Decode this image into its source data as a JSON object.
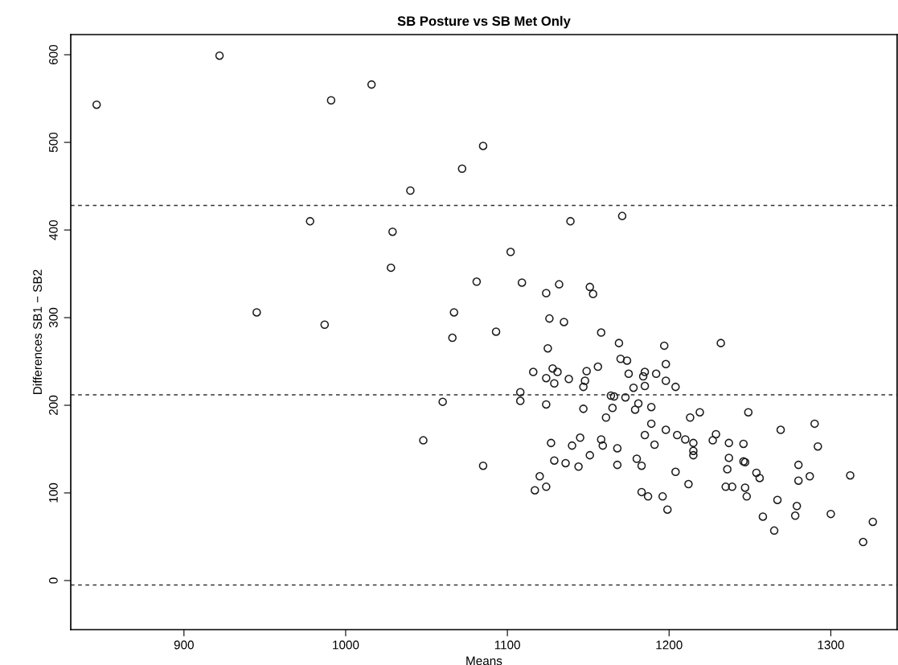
{
  "chart_data": {
    "type": "scatter",
    "title": "SB Posture vs SB Met Only",
    "xlabel": "Means",
    "ylabel": "Differences SB1 − SB2",
    "xlim": [
      830,
      1341
    ],
    "ylim": [
      -56,
      623
    ],
    "xticks": [
      900,
      1000,
      1100,
      1200,
      1300
    ],
    "yticks": [
      0,
      100,
      200,
      300,
      400,
      500,
      600
    ],
    "marker": "circle",
    "grid": false,
    "legend": false,
    "ref_lines": [
      {
        "axis": "y",
        "value": 428,
        "line_style": "dashed",
        "color": "#333333"
      },
      {
        "axis": "y",
        "value": 212,
        "line_style": "dashed",
        "color": "#333333"
      },
      {
        "axis": "y",
        "value": -5,
        "line_style": "dashed",
        "color": "#333333"
      }
    ],
    "series": [
      {
        "color": "#1a1a1a",
        "x": [
          846,
          922,
          991,
          1016,
          1085,
          1072,
          1040,
          978,
          1029,
          1028,
          945,
          987,
          1067,
          1066,
          1093,
          1081,
          1102,
          1109,
          1124,
          1132,
          1151,
          1153,
          1126,
          1135,
          1158,
          1125,
          1169,
          1197,
          1170,
          1174,
          1198,
          1116,
          1128,
          1131,
          1124,
          1129,
          1138,
          1149,
          1156,
          1148,
          1147,
          1175,
          1185,
          1184,
          1192,
          1198,
          1204,
          1178,
          1185,
          1108,
          1108,
          1124,
          1147,
          1164,
          1166,
          1173,
          1165,
          1181,
          1179,
          1189,
          1161,
          1232,
          1219,
          1249,
          1213,
          1189,
          1198,
          1185,
          1205,
          1210,
          1191,
          1127,
          1140,
          1145,
          1158,
          1159,
          1168,
          1151,
          1129,
          1136,
          1144,
          1168,
          1180,
          1183,
          1085,
          1120,
          1124,
          1117,
          1183,
          1187,
          1196,
          1199,
          1204,
          1212,
          1269,
          1290,
          1292,
          1229,
          1227,
          1215,
          1237,
          1246,
          1215,
          1215,
          1237,
          1246,
          1247,
          1236,
          1254,
          1256,
          1235,
          1239,
          1247,
          1248,
          1280,
          1287,
          1280,
          1312,
          1267,
          1279,
          1278,
          1300,
          1258,
          1265,
          1326,
          1320,
          1048,
          1060,
          1139,
          1171
        ],
        "values": [
          543,
          599,
          548,
          566,
          496,
          470,
          445,
          410,
          398,
          357,
          306,
          292,
          306,
          277,
          284,
          341,
          375,
          340,
          328,
          338,
          335,
          327,
          299,
          295,
          283,
          265,
          271,
          268,
          253,
          251,
          247,
          238,
          242,
          238,
          231,
          225,
          230,
          239,
          244,
          228,
          221,
          236,
          238,
          233,
          236,
          228,
          221,
          220,
          222,
          215,
          205,
          201,
          196,
          211,
          210,
          209,
          197,
          202,
          195,
          198,
          186,
          271,
          192,
          192,
          186,
          179,
          172,
          166,
          166,
          161,
          155,
          157,
          154,
          163,
          161,
          154,
          151,
          143,
          137,
          134,
          130,
          132,
          139,
          131,
          131,
          119,
          107,
          103,
          101,
          96,
          96,
          81,
          124,
          110,
          172,
          179,
          153,
          167,
          160,
          157,
          157,
          156,
          148,
          143,
          140,
          136,
          135,
          127,
          123,
          117,
          107,
          107,
          106,
          96,
          132,
          119,
          114,
          120,
          92,
          85,
          74,
          76,
          73,
          57,
          67,
          44,
          160,
          204,
          410,
          416
        ]
      }
    ]
  }
}
